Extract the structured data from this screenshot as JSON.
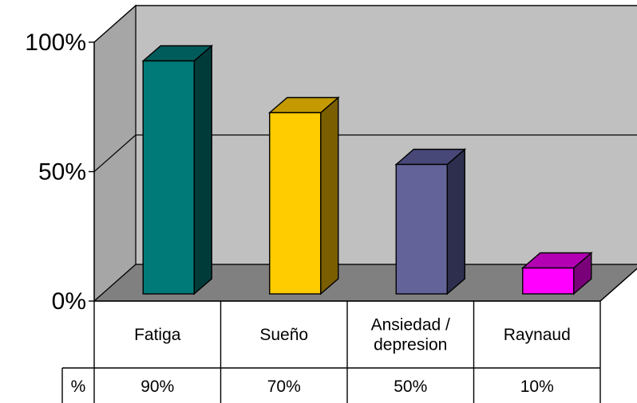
{
  "chart_data": {
    "type": "bar",
    "title": "",
    "xlabel": "",
    "ylabel": "",
    "ylim": [
      0,
      100
    ],
    "y_ticks": [
      "0%",
      "50%",
      "100%"
    ],
    "y_tick_values": [
      0,
      50,
      100
    ],
    "categories": [
      {
        "label_lines": [
          "Fatiga"
        ]
      },
      {
        "label_lines": [
          "Sueño"
        ]
      },
      {
        "label_lines": [
          "Ansiedad /",
          "depresion"
        ]
      },
      {
        "label_lines": [
          "Raynaud"
        ]
      }
    ],
    "values": [
      90,
      70,
      50,
      10
    ],
    "grid": true,
    "three_d": true,
    "colors": [
      {
        "front": "#007a78",
        "top": "#005c5a",
        "side": "#003b3a"
      },
      {
        "front": "#ffcc00",
        "top": "#c49a00",
        "side": "#7a5e00"
      },
      {
        "front": "#636399",
        "top": "#474778",
        "side": "#2e2e4e"
      },
      {
        "front": "#ff00ff",
        "top": "#b300b3",
        "side": "#7a007a"
      }
    ],
    "data_table": {
      "row_header": "%",
      "values": [
        "90%",
        "70%",
        "50%",
        "10%"
      ]
    }
  }
}
